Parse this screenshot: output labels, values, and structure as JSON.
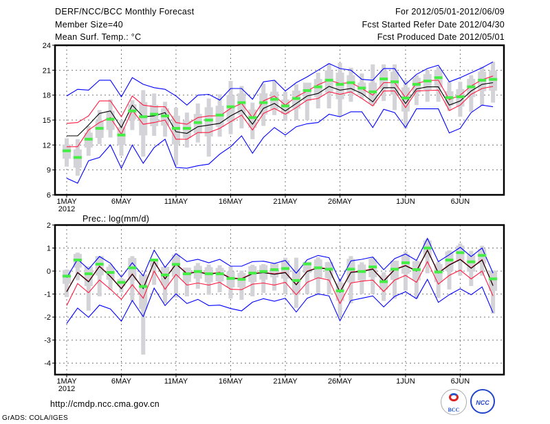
{
  "header": {
    "title": "DERF/NCC/BCC Monthly Forecast",
    "member_size": "Member Size=40",
    "period": "For 2012/05/01-2012/06/09",
    "refer_date": "Fcst Started Refer Date 2012/04/30",
    "produced_date": "Fcst Produced Date 2012/05/01"
  },
  "footer": {
    "url": "http://cmdp.ncc.cma.gov.cn",
    "credit": "GrADS: COLA/IGES",
    "logo_left": "BCC",
    "logo_right": "NCC"
  },
  "colors": {
    "max_min": "#0000ff",
    "spread": "#ff1a40",
    "mean": "#000000",
    "member": "#44ee44",
    "range": "#d3d3d8"
  },
  "chart_data": [
    {
      "type": "line",
      "title": "Mean Surf. Temp.: °C",
      "xlabel": "",
      "ylabel": "",
      "ylim": [
        6,
        24
      ],
      "yticks": [
        6,
        9,
        12,
        15,
        18,
        21,
        24
      ],
      "xtick_labels": [
        "1MAY",
        "6MAY",
        "11MAY",
        "16MAY",
        "21MAY",
        "26MAY",
        "1JUN",
        "6JUN"
      ],
      "xtick_days": [
        1,
        6,
        11,
        16,
        21,
        26,
        32,
        37
      ],
      "year_label": "2012",
      "grid": true,
      "days": 40,
      "series": {
        "max": [
          17.9,
          18.7,
          18.6,
          19.8,
          19.8,
          17.8,
          20.1,
          19.3,
          18.9,
          18.7,
          17.9,
          16.8,
          18.0,
          18.1,
          17.4,
          18.8,
          18.8,
          17.5,
          19.6,
          19.8,
          18.5,
          19.5,
          20.2,
          21.0,
          21.8,
          21.2,
          21.0,
          19.9,
          19.8,
          21.2,
          21.2,
          19.3,
          20.5,
          21.2,
          21.6,
          19.6,
          20.1,
          20.7,
          21.3,
          22.0
        ],
        "min": [
          8.0,
          7.4,
          10.1,
          10.5,
          12.0,
          9.2,
          12.0,
          9.8,
          11.7,
          12.7,
          9.3,
          9.2,
          9.5,
          9.7,
          10.9,
          11.8,
          13.1,
          11.0,
          12.9,
          14.1,
          13.2,
          14.2,
          14.55,
          14.7,
          15.7,
          15.4,
          16.0,
          16.0,
          14.1,
          16.3,
          15.9,
          14.1,
          16.35,
          16.35,
          16.35,
          13.45,
          14.0,
          15.9,
          16.8,
          16.6
        ],
        "upper": [
          14.6,
          14.7,
          15.5,
          17.3,
          17.3,
          15.4,
          17.9,
          16.8,
          16.6,
          16.6,
          14.7,
          14.5,
          15.3,
          15.5,
          15.5,
          16.4,
          17.0,
          15.3,
          17.3,
          17.9,
          16.8,
          17.8,
          18.5,
          19.25,
          19.8,
          19.4,
          19.5,
          18.8,
          18.0,
          19.5,
          19.5,
          17.7,
          19.4,
          19.75,
          19.8,
          17.45,
          18.0,
          19.1,
          19.85,
          20.3
        ],
        "mean": [
          13.1,
          13.1,
          14.4,
          15.8,
          16.1,
          14.1,
          16.8,
          15.4,
          15.5,
          15.9,
          13.6,
          13.4,
          14.2,
          14.4,
          14.6,
          15.5,
          16.2,
          14.5,
          16.4,
          17.0,
          16.1,
          17.0,
          17.9,
          18.2,
          19.05,
          18.6,
          18.8,
          18.2,
          17.2,
          18.9,
          18.9,
          17.0,
          18.75,
          19.0,
          19.0,
          16.8,
          17.3,
          18.5,
          19.3,
          19.5
        ],
        "lower": [
          11.8,
          11.8,
          13.8,
          14.7,
          15.3,
          13.3,
          16.2,
          14.5,
          14.7,
          15.0,
          12.7,
          12.7,
          13.5,
          13.5,
          14.0,
          14.8,
          15.6,
          13.8,
          15.8,
          16.4,
          15.7,
          16.5,
          17.4,
          17.6,
          18.4,
          18.1,
          18.4,
          17.6,
          16.7,
          18.5,
          18.5,
          16.5,
          18.5,
          18.55,
          18.6,
          16.15,
          16.8,
          18.1,
          18.8,
          19.05
        ],
        "member_mark": [
          11.3,
          10.5,
          12.7,
          14.0,
          15.1,
          13.2,
          16.1,
          15.4,
          15.7,
          15.5,
          14.0,
          14.0,
          14.7,
          15.0,
          15.6,
          16.6,
          17.1,
          15.3,
          17.1,
          17.5,
          16.7,
          17.6,
          18.55,
          19.0,
          19.8,
          19.3,
          19.5,
          18.85,
          18.4,
          19.95,
          19.6,
          17.65,
          19.3,
          19.7,
          20.1,
          17.7,
          17.8,
          19.0,
          19.8,
          19.9
        ],
        "range_low": [
          9.4,
          8.3,
          10.7,
          12.1,
          12.9,
          10.7,
          13.8,
          10.6,
          13.1,
          13.0,
          9.6,
          11.7,
          12.3,
          10.6,
          13.0,
          13.3,
          14.0,
          12.7,
          14.3,
          15.6,
          14.9,
          15.0,
          15.0,
          16.4,
          16.4,
          15.5,
          17.2,
          17.6,
          16.7,
          17.3,
          16.2,
          14.0,
          16.8,
          17.2,
          17.2,
          16.1,
          15.4,
          16.0,
          16.7,
          17.1
        ],
        "range_high": [
          12.8,
          12.7,
          14.3,
          16.2,
          17.5,
          15.0,
          17.4,
          18.6,
          18.2,
          17.2,
          16.5,
          15.9,
          17.0,
          17.6,
          18.1,
          19.7,
          19.1,
          17.1,
          19.4,
          19.8,
          18.4,
          19.3,
          19.5,
          20.7,
          21.8,
          21.9,
          21.3,
          20.6,
          21.7,
          21.7,
          21.7,
          19.8,
          20.4,
          21.0,
          21.4,
          19.6,
          19.6,
          20.4,
          21.4,
          22.0
        ]
      }
    },
    {
      "type": "line",
      "title": "Prec.: log(mm/d)",
      "xlabel": "",
      "ylabel": "",
      "ylim": [
        -4.5,
        2
      ],
      "yticks": [
        -4,
        -3,
        -2,
        -1,
        0,
        1,
        2
      ],
      "xtick_labels": [
        "1MAY",
        "6MAY",
        "11MAY",
        "16MAY",
        "21MAY",
        "26MAY",
        "1JUN",
        "6JUN"
      ],
      "xtick_days": [
        1,
        6,
        11,
        16,
        21,
        26,
        32,
        37
      ],
      "year_label": "2012",
      "grid": true,
      "days": 40,
      "series": {
        "max": [
          -0.29,
          0.51,
          0.08,
          0.63,
          0.34,
          -0.26,
          0.36,
          -0.21,
          0.91,
          0.16,
          0.76,
          0.41,
          0.51,
          0.36,
          0.51,
          0.21,
          0.21,
          0.41,
          0.43,
          0.33,
          0.46,
          -0.09,
          0.49,
          0.68,
          0.58,
          -0.44,
          0.44,
          0.51,
          0.61,
          0.06,
          0.54,
          0.74,
          0.46,
          1.42,
          0.41,
          0.71,
          1.03,
          0.63,
          1.0,
          -0.09
        ],
        "min": [
          -2.28,
          -1.61,
          -2.01,
          -1.48,
          -1.65,
          -2.18,
          -1.28,
          -1.98,
          -0.74,
          -1.5,
          -0.99,
          -1.41,
          -1.23,
          -1.5,
          -1.48,
          -1.63,
          -1.73,
          -1.35,
          -1.2,
          -1.31,
          -1.18,
          -1.78,
          -1.18,
          -0.99,
          -1.08,
          -2.16,
          -1.28,
          -1.18,
          -1.08,
          -1.56,
          -1.1,
          -0.9,
          -1.2,
          -0.36,
          -1.36,
          -1.03,
          -0.77,
          -1.03,
          -0.69,
          -1.81
        ],
        "upper": [
          -0.88,
          -0.05,
          -0.45,
          0.22,
          -0.22,
          -0.75,
          -0.12,
          -0.74,
          0.42,
          -0.32,
          0.32,
          -0.1,
          -0.02,
          -0.12,
          -0.05,
          -0.3,
          -0.32,
          -0.1,
          -0.05,
          -0.12,
          -0.05,
          -0.58,
          0.0,
          0.16,
          0.1,
          -0.9,
          -0.04,
          0.0,
          0.1,
          -0.42,
          0.08,
          0.25,
          0.02,
          0.92,
          -0.07,
          0.28,
          0.52,
          0.14,
          0.5,
          -0.62
        ],
        "mean": [
          -0.9,
          -0.07,
          -0.47,
          0.2,
          -0.24,
          -0.77,
          -0.14,
          -0.76,
          0.4,
          -0.34,
          0.3,
          -0.12,
          -0.04,
          -0.14,
          -0.07,
          -0.32,
          -0.34,
          -0.12,
          -0.07,
          -0.14,
          -0.07,
          -0.6,
          -0.02,
          0.14,
          0.08,
          -0.92,
          -0.06,
          -0.02,
          0.08,
          -0.44,
          0.06,
          0.23,
          0.0,
          0.9,
          -0.09,
          0.26,
          0.5,
          0.12,
          0.48,
          -0.64
        ],
        "lower": [
          -1.5,
          -0.54,
          -0.94,
          -0.39,
          -0.79,
          -1.23,
          -0.59,
          -1.18,
          0.0,
          -0.79,
          -0.14,
          -0.61,
          -0.52,
          -0.61,
          -0.49,
          -0.79,
          -0.81,
          -0.57,
          -0.52,
          -0.61,
          -0.49,
          -1.03,
          -0.49,
          -0.29,
          -0.39,
          -1.41,
          -0.52,
          -0.44,
          -0.39,
          -0.89,
          -0.39,
          -0.19,
          -0.49,
          0.41,
          -0.57,
          -0.19,
          0.04,
          -0.34,
          0.0,
          -1.08
        ],
        "member_mark": [
          -0.22,
          0.48,
          -0.12,
          0.3,
          -0.06,
          -0.49,
          0.14,
          -0.67,
          0.48,
          -0.17,
          0.29,
          -0.12,
          -0.02,
          -0.12,
          -0.12,
          -0.32,
          -0.36,
          -0.09,
          -0.02,
          0.06,
          0.11,
          -0.41,
          0.31,
          0.14,
          0.08,
          -0.86,
          0.08,
          -0.02,
          0.18,
          -0.46,
          0.08,
          0.36,
          0.06,
          1.0,
          -0.04,
          0.48,
          0.8,
          0.4,
          0.68,
          -0.34
        ],
        "range_low": [
          -1.13,
          -0.4,
          -1.72,
          -1.1,
          -0.83,
          -0.93,
          -1.3,
          -3.63,
          -0.6,
          -1.4,
          -1.15,
          -1.1,
          -0.77,
          -1.03,
          -0.92,
          -1.2,
          -1.25,
          -1.1,
          -0.95,
          -0.85,
          -1.0,
          -1.6,
          -1.0,
          -1.06,
          -1.0,
          -1.95,
          -1.4,
          -1.0,
          -1.0,
          -1.3,
          -1.2,
          -0.85,
          -1.2,
          -0.1,
          -1.17,
          -0.8,
          -0.2,
          -0.65,
          -0.2,
          -1.85
        ],
        "range_high": [
          0.07,
          0.8,
          0.2,
          0.65,
          0.3,
          -0.3,
          0.65,
          -0.15,
          0.5,
          0.2,
          0.77,
          0.15,
          0.35,
          0.28,
          0.25,
          0.2,
          0.02,
          0.27,
          0.3,
          0.35,
          0.58,
          0.58,
          0.4,
          0.6,
          0.4,
          -0.4,
          0.65,
          0.38,
          0.6,
          -0.05,
          0.45,
          0.85,
          0.45,
          1.4,
          0.4,
          0.9,
          1.2,
          0.88,
          1.1,
          0.02
        ]
      }
    }
  ]
}
